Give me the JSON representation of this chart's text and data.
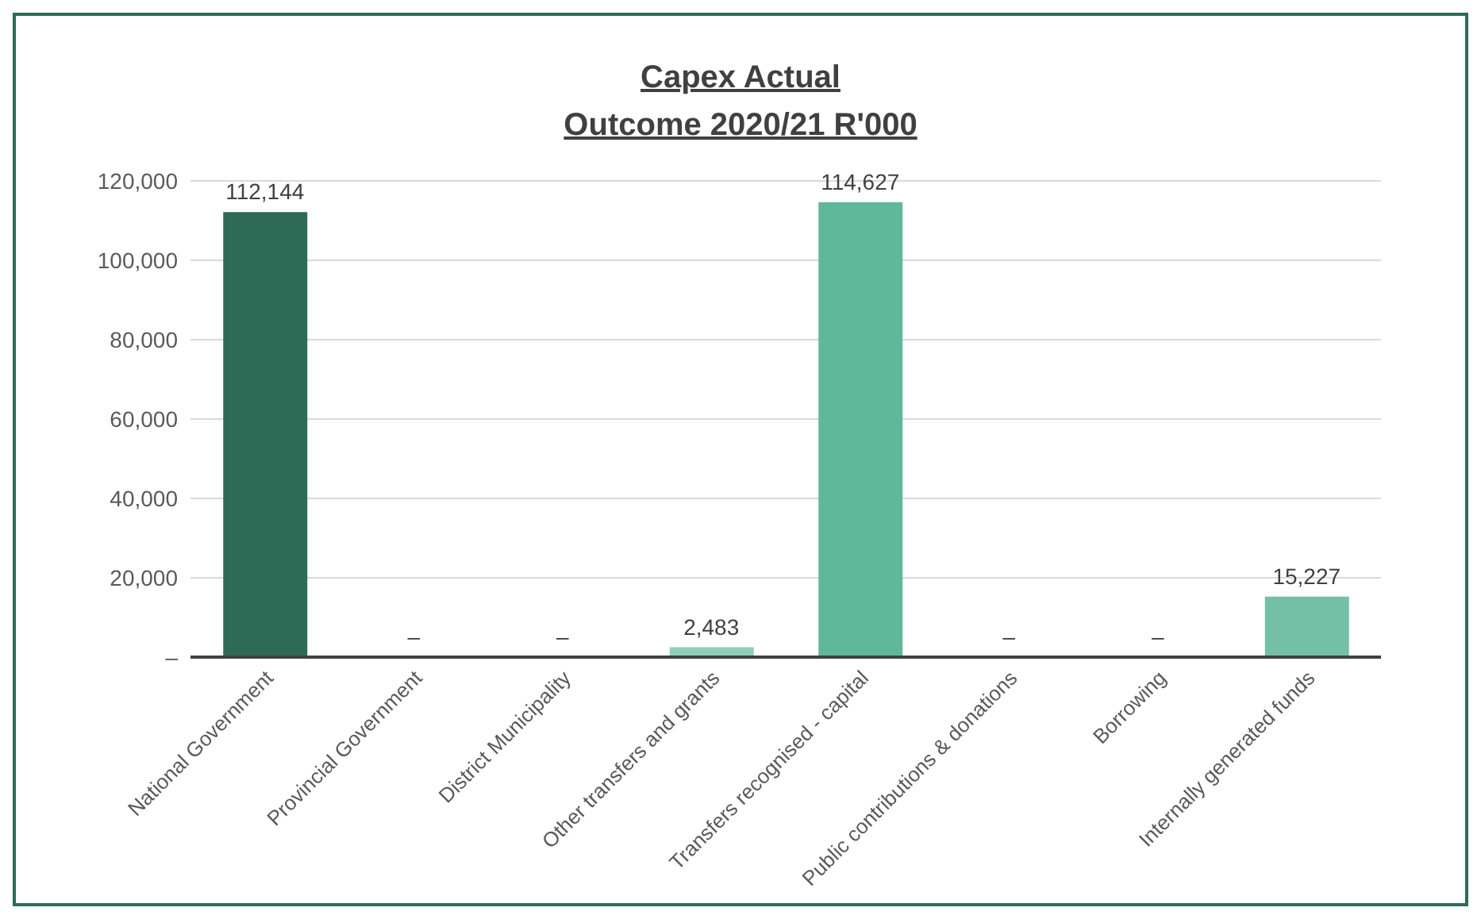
{
  "chart_data": {
    "type": "bar",
    "title": "Capex Actual\nOutcome 2020/21 R'000",
    "categories": [
      "National Government",
      "Provincial Government",
      "District Municipality",
      "Other transfers and grants",
      "Transfers recognised - capital",
      "Public contributions & donations",
      "Borrowing",
      "Internally generated funds"
    ],
    "values": [
      112144,
      0,
      0,
      2483,
      114627,
      0,
      0,
      15227
    ],
    "colors": [
      "#2e6b57",
      "#4a9396",
      "#4a9396",
      "#8fcfb8",
      "#5fb89a",
      "#4a9396",
      "#4a9396",
      "#74c0a7"
    ],
    "value_labels": [
      "112,144",
      "–",
      "–",
      "2,483",
      "114,627",
      "–",
      "–",
      "15,227"
    ],
    "ylim": [
      0,
      120000
    ],
    "yticks": [
      {
        "value": 0,
        "label": "–"
      },
      {
        "value": 20000,
        "label": "20,000"
      },
      {
        "value": 40000,
        "label": "40,000"
      },
      {
        "value": 60000,
        "label": "60,000"
      },
      {
        "value": 80000,
        "label": "80,000"
      },
      {
        "value": 100000,
        "label": "100,000"
      },
      {
        "value": 120000,
        "label": "120,000"
      }
    ],
    "grid": "y",
    "legend": false
  }
}
